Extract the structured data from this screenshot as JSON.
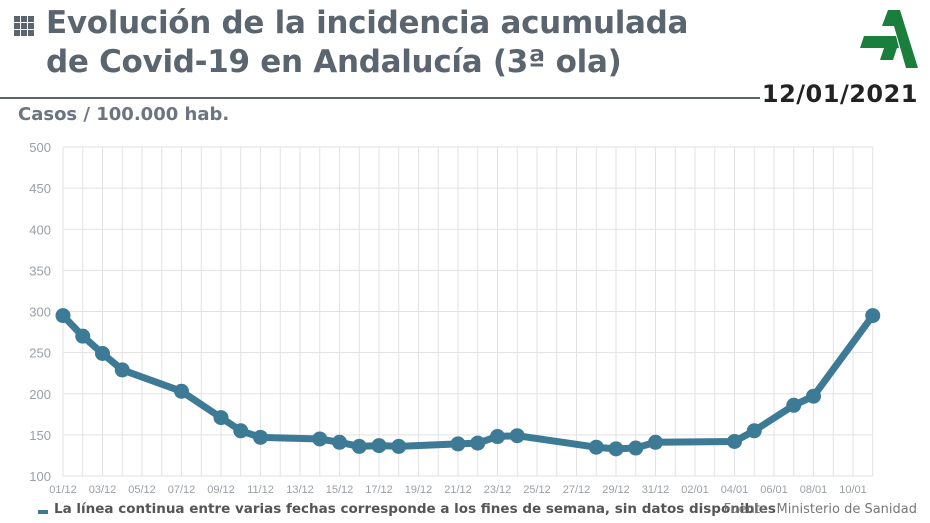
{
  "header": {
    "title_line1": "Evolución de la incidencia acumulada",
    "title_line2": "de Covid-19 en Andalucía (3ª ola)",
    "date": "12/01/2021",
    "unit_label": "Casos / 100.000 hab.",
    "icon": "grid-icon",
    "logo_icon": "junta-andalucia-logo"
  },
  "footer": {
    "note": "La línea continua entre varias fechas corresponde a los fines de semana, sin datos disponibles",
    "source": "Fuente: Ministerio de Sanidad"
  },
  "colors": {
    "line": "#3d7a95",
    "grid": "#e2e2e2",
    "title": "#5a6570",
    "logo": "#1a7f3c"
  },
  "chart_data": {
    "type": "line",
    "title": "Evolución de la incidencia acumulada de Covid-19 en Andalucía (3ª ola)",
    "ylabel": "Casos / 100.000 hab.",
    "xlabel": "",
    "ylim": [
      100,
      500
    ],
    "yticks": [
      100,
      150,
      200,
      250,
      300,
      350,
      400,
      450,
      500
    ],
    "grid": true,
    "xticks": [
      "01/12",
      "03/12",
      "05/12",
      "07/12",
      "09/12",
      "11/12",
      "13/12",
      "15/12",
      "17/12",
      "19/12",
      "21/12",
      "23/12",
      "25/12",
      "27/12",
      "29/12",
      "31/12",
      "02/01",
      "04/01",
      "06/01",
      "08/01",
      "10/01"
    ],
    "series": [
      {
        "points": [
          {
            "x": "01/12",
            "y": 295
          },
          {
            "x": "02/12",
            "y": 270
          },
          {
            "x": "03/12",
            "y": 249
          },
          {
            "x": "04/12",
            "y": 229
          },
          {
            "x": "07/12",
            "y": 203
          },
          {
            "x": "09/12",
            "y": 171
          },
          {
            "x": "10/12",
            "y": 155
          },
          {
            "x": "11/12",
            "y": 147
          },
          {
            "x": "14/12",
            "y": 145
          },
          {
            "x": "15/12",
            "y": 141
          },
          {
            "x": "16/12",
            "y": 136
          },
          {
            "x": "17/12",
            "y": 137
          },
          {
            "x": "18/12",
            "y": 136
          },
          {
            "x": "21/12",
            "y": 139
          },
          {
            "x": "22/12",
            "y": 140
          },
          {
            "x": "23/12",
            "y": 148
          },
          {
            "x": "24/12",
            "y": 149
          },
          {
            "x": "28/12",
            "y": 135
          },
          {
            "x": "29/12",
            "y": 133
          },
          {
            "x": "30/12",
            "y": 134
          },
          {
            "x": "31/12",
            "y": 141
          },
          {
            "x": "04/01",
            "y": 142
          },
          {
            "x": "05/01",
            "y": 155
          },
          {
            "x": "07/01",
            "y": 186
          },
          {
            "x": "08/01",
            "y": 197
          },
          {
            "x": "11/01",
            "y": 295
          }
        ]
      }
    ]
  }
}
